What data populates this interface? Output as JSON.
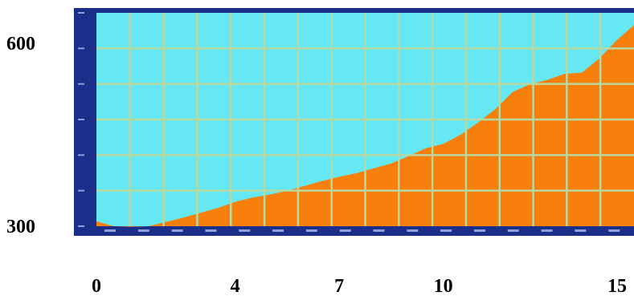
{
  "chart_data": {
    "type": "area",
    "title": "",
    "xlabel": "",
    "ylabel": "",
    "x_tick_labels": [
      "0",
      "4",
      "7",
      "10",
      "15"
    ],
    "x_tick_values": [
      0,
      4,
      7,
      10,
      15
    ],
    "y_tick_labels": [
      "300",
      "600"
    ],
    "y_tick_values": [
      300,
      600
    ],
    "xlim": [
      0,
      15.5
    ],
    "ylim": [
      300,
      650
    ],
    "grid": true,
    "colors": {
      "plot_background": "#66e8f4",
      "area_fill": "#f7800d",
      "grid": "#b8d8a0",
      "frame": "#1b2e8a"
    },
    "series": [
      {
        "values": [
          [
            0,
            308
          ],
          [
            0.5,
            300
          ],
          [
            1,
            299
          ],
          [
            1.5,
            300
          ],
          [
            2,
            307
          ],
          [
            2.5,
            314
          ],
          [
            3,
            322
          ],
          [
            3.5,
            330
          ],
          [
            4,
            340
          ],
          [
            4.5,
            347
          ],
          [
            5,
            352
          ],
          [
            5.5,
            358
          ],
          [
            6,
            366
          ],
          [
            6.5,
            374
          ],
          [
            7,
            381
          ],
          [
            7.5,
            387
          ],
          [
            8,
            395
          ],
          [
            8.5,
            403
          ],
          [
            9,
            415
          ],
          [
            9.5,
            428
          ],
          [
            10,
            435
          ],
          [
            10.5,
            450
          ],
          [
            11,
            470
          ],
          [
            11.5,
            492
          ],
          [
            12,
            520
          ],
          [
            12.5,
            533
          ],
          [
            13,
            540
          ],
          [
            13.5,
            550
          ],
          [
            14,
            552
          ],
          [
            14.5,
            575
          ],
          [
            15,
            605
          ],
          [
            15.5,
            630
          ]
        ]
      }
    ]
  }
}
